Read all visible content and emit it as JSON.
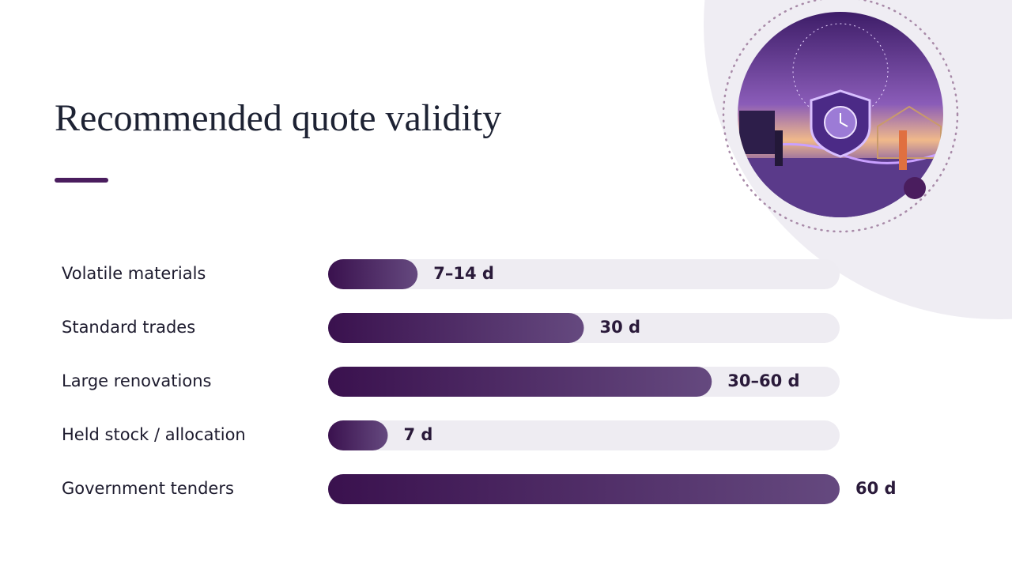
{
  "chart_data": {
    "type": "bar",
    "orientation": "horizontal",
    "title": "Recommended quote validity",
    "categories": [
      "Volatile materials",
      "Standard trades",
      "Large renovations",
      "Held stock / allocation",
      "Government tenders"
    ],
    "values": [
      10.5,
      30,
      45,
      7,
      60
    ],
    "value_labels": [
      "7–14 d",
      "30 d",
      "30–60 d",
      "7 d",
      "60 d"
    ],
    "xlim": [
      0,
      60
    ],
    "color": "#4a1d5e",
    "track_color": "#eeecf2"
  }
}
